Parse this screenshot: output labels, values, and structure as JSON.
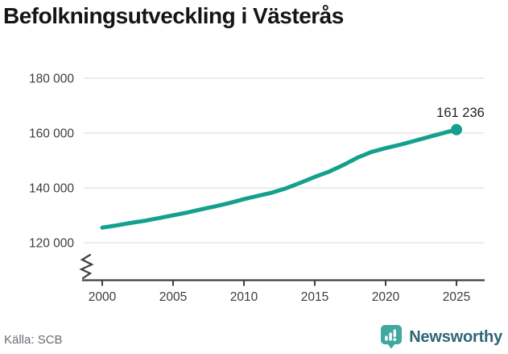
{
  "header": {
    "title": "Befolkningsutveckling i Västerås"
  },
  "footer": {
    "source": "Källa: SCB",
    "brand": "Newsworthy"
  },
  "colors": {
    "line": "#13a08e",
    "point": "#13a08e",
    "grid": "#e7e7e7",
    "axis": "#3f3f3f",
    "tick_label": "#3d3d3d",
    "end_label": "#1f1f1f",
    "logo_teal": "#40a89f",
    "background": "#ffffff"
  },
  "chart_data": {
    "type": "line",
    "title": "Befolkningsutveckling i Västerås",
    "series_name": "Befolkning",
    "x": [
      2000,
      2001,
      2002,
      2003,
      2004,
      2005,
      2006,
      2007,
      2008,
      2009,
      2010,
      2011,
      2012,
      2013,
      2014,
      2015,
      2016,
      2017,
      2018,
      2019,
      2020,
      2021,
      2022,
      2023,
      2024,
      2025
    ],
    "values": [
      125500,
      126300,
      127200,
      128000,
      129000,
      130000,
      131000,
      132200,
      133300,
      134500,
      135900,
      137100,
      138300,
      139900,
      141900,
      144000,
      145900,
      148300,
      151000,
      153100,
      154500,
      155700,
      157100,
      158500,
      159900,
      161236
    ],
    "end_label": "161 236",
    "xlabel": "",
    "ylabel": "",
    "xlim": [
      1998.5,
      2027
    ],
    "ylim": [
      115000,
      186000
    ],
    "axis_break": true,
    "grid": "horizontal",
    "legend": "none",
    "yticks": {
      "values": [
        120000,
        140000,
        160000,
        180000
      ],
      "labels": [
        "120 000",
        "140 000",
        "160 000",
        "180 000"
      ]
    },
    "xticks": {
      "values": [
        2000,
        2005,
        2010,
        2015,
        2020,
        2025
      ],
      "labels": [
        "2000",
        "2005",
        "2010",
        "2015",
        "2020",
        "2025"
      ]
    },
    "source": "SCB"
  }
}
